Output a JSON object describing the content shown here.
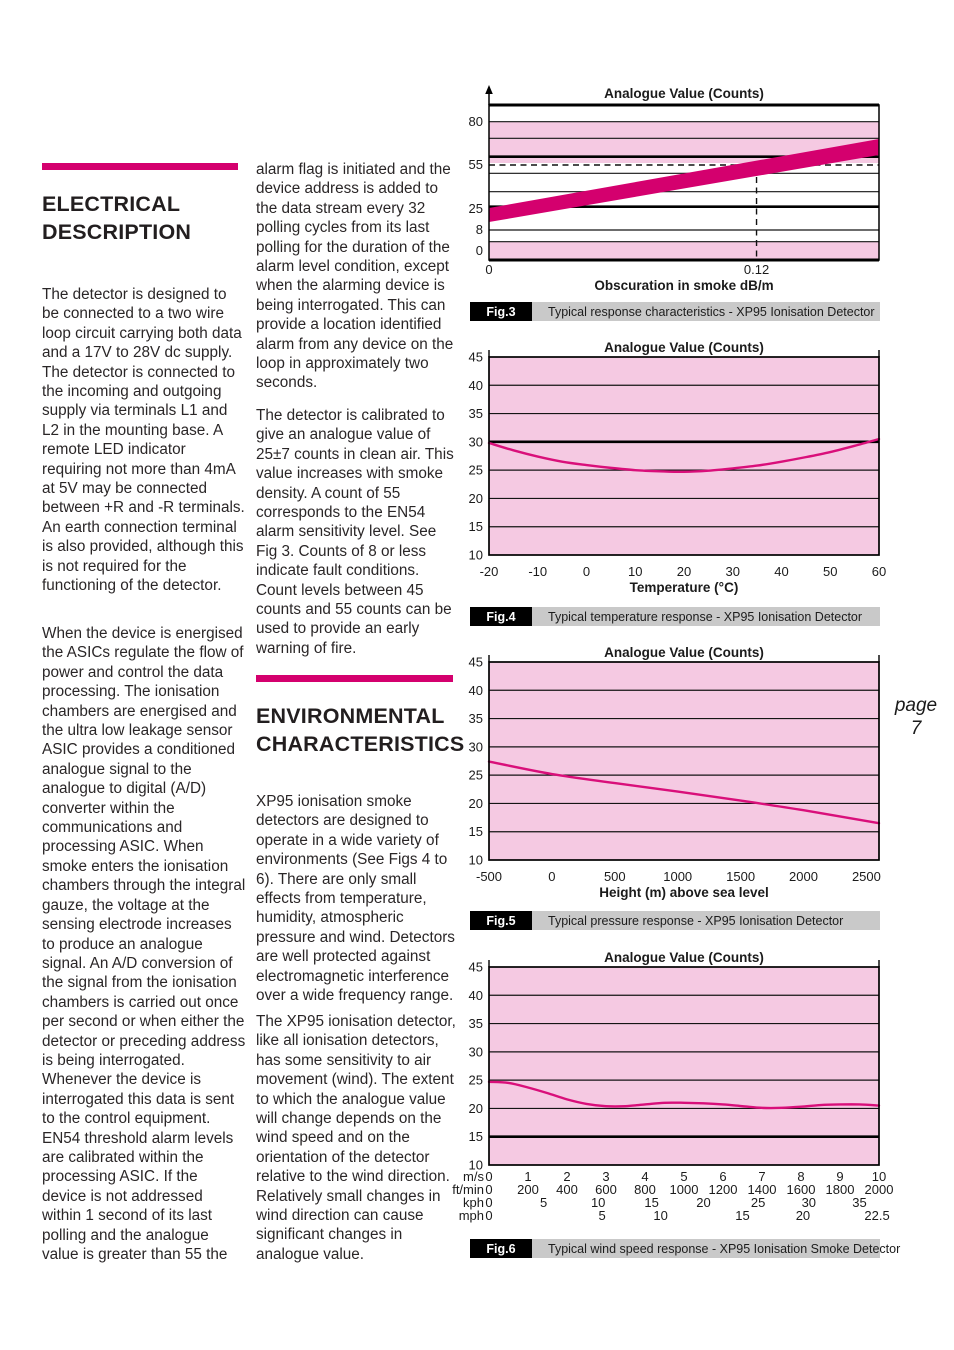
{
  "page_number": {
    "word": "page",
    "number": "7"
  },
  "left_column": {
    "heading": "ELECTRICAL\nDESCRIPTION",
    "para1": "The detector is designed to be connected to a two wire loop circuit carrying both data and a 17V to 28V dc supply.  The detector is connected to the incoming and outgoing supply via terminals L1 and L2 in the mounting base.  A remote LED indicator requiring not more than 4mA at 5V may be connected between +R and -R terminals.  An earth connection terminal is also provided, although this is not required for the functioning of the detector.",
    "para2": "When the device is energised the ASICs regulate the flow of power and control the data processing.  The ionisation chambers are energised and the ultra low leakage sensor ASIC provides a conditioned analogue signal to the analogue to digital (A/D) converter within the communications and processing ASIC.  When smoke enters the ionisation chambers through the integral gauze, the voltage at the sensing electrode increases to produce an analogue signal.  An A/D conversion of the signal from the ionisation chambers is carried out once per second or when either the detector or preceding address is being interrogated.  Whenever the device is interrogated this data is sent to the control equipment.  EN54 threshold alarm levels are calibrated within the processing ASIC.  If the device is not addressed within 1 second of its last polling and the analogue value is greater than 55 the"
  },
  "middle_column": {
    "para1": "alarm flag is initiated and the device address is added to the data stream every 32 polling cycles from its last polling for the duration of the alarm level condition, except when the alarming device is being interrogated.  This can provide a location identified alarm from any device on the loop in approximately two seconds.",
    "para2": "The detector is calibrated to give an analogue value of 25±7 counts in clean air.  This value increases with smoke density.  A count of 55 corresponds to the EN54 alarm sensitivity level.  See Fig 3. Counts of 8 or less indicate fault conditions.  Count levels between 45 counts and 55 counts can be used to provide an early warning of fire.",
    "heading": "ENVIRONMENTAL\nCHARACTERISTICS",
    "para3": "XP95 ionisation smoke detectors are designed to operate in a wide variety of environments (See Figs 4 to 6).  There are only small effects from temperature, humidity, atmospheric pressure and wind.  Detectors are well protected against electromagnetic interference over a wide frequency range.",
    "para4": "The XP95 ionisation detector, like all ionisation detectors, has some sensitivity to air movement (wind).  The extent to which the analogue value will change depends on the wind speed and on the orientation of the detector relative to the wind direction.  Relatively small changes in wind direction can cause significant changes in analogue value."
  },
  "colors": {
    "accent_magenta": "#d4006e",
    "curve_magenta": "#d90f7a",
    "pink_fill": "#f5c9e2",
    "caption_bar": "#c9c9c9",
    "grid_line": "#141414"
  },
  "chart_data": [
    {
      "figure": "Fig.3",
      "caption": "Typical response characteristics - XP95 Ionisation Detector",
      "type": "area",
      "title": "Analogue Value (Counts)",
      "xlabel": "Obscuration in smoke dB/m",
      "x_ticks": [
        {
          "label": "0",
          "frac": 0
        },
        {
          "label": "0.12",
          "frac": 0.686
        }
      ],
      "y_tick_labels": [
        "80",
        "55",
        "25",
        "8",
        "0"
      ],
      "clean_air_counts": 25,
      "alarm_threshold_counts": 55,
      "fault_counts": 8,
      "early_warning_band_counts": [
        45,
        55
      ],
      "reference_obscuration_dbm": 0.12,
      "band": {
        "x_dbm": [
          0,
          0.175
        ],
        "counts_low": [
          23,
          60
        ],
        "counts_high": [
          27,
          68
        ]
      }
    },
    {
      "figure": "Fig.4",
      "caption": "Typical temperature response - XP95 Ionisation Detector",
      "type": "line",
      "title": "Analogue Value (Counts)",
      "xlabel": "Temperature (°C)",
      "xlim": [
        -20,
        60
      ],
      "ylim": [
        10,
        45
      ],
      "x_ticks": [
        -20,
        -10,
        0,
        10,
        20,
        30,
        40,
        50,
        60
      ],
      "y_ticks": [
        45,
        40,
        35,
        30,
        25,
        20,
        15,
        10
      ],
      "reference_line_y": 30,
      "series": [
        {
          "name": "analogue value",
          "x": [
            -20,
            -15,
            -10,
            -5,
            0,
            5,
            10,
            15,
            20,
            25,
            30,
            35,
            40,
            45,
            50,
            55,
            60
          ],
          "y": [
            29.8,
            28.5,
            27.4,
            26.5,
            25.9,
            25.4,
            25.0,
            24.8,
            24.7,
            24.9,
            25.3,
            25.8,
            26.5,
            27.3,
            28.2,
            29.3,
            30.5
          ]
        }
      ]
    },
    {
      "figure": "Fig.5",
      "caption": "Typical pressure response - XP95 Ionisation Detector",
      "type": "line",
      "title": "Analogue Value (Counts)",
      "xlabel": "Height (m) above sea level",
      "xlim": [
        -500,
        2600
      ],
      "ylim": [
        10,
        45
      ],
      "x_ticks": [
        -500,
        0,
        500,
        1000,
        1500,
        2000,
        2500
      ],
      "y_ticks": [
        45,
        40,
        35,
        30,
        25,
        20,
        15,
        10
      ],
      "series": [
        {
          "name": "analogue value",
          "x": [
            -500,
            0,
            500,
            1000,
            1500,
            2000,
            2600
          ],
          "y": [
            27.4,
            25.2,
            23.6,
            22.1,
            20.5,
            18.8,
            16.5
          ]
        }
      ]
    },
    {
      "figure": "Fig.6",
      "caption": "Typical wind speed response - XP95 Ionisation Smoke Detector",
      "type": "line",
      "title": "Analogue Value (Counts)",
      "xlim": [
        0,
        10
      ],
      "ylim": [
        10,
        45
      ],
      "y_ticks": [
        45,
        40,
        35,
        30,
        25,
        20,
        15,
        10
      ],
      "reference_line_y": 15,
      "axis_rows": [
        {
          "unit": "m/s",
          "ticks": [
            {
              "x": 0,
              "label": "0"
            },
            {
              "x": 1,
              "label": "1"
            },
            {
              "x": 2,
              "label": "2"
            },
            {
              "x": 3,
              "label": "3"
            },
            {
              "x": 4,
              "label": "4"
            },
            {
              "x": 5,
              "label": "5"
            },
            {
              "x": 6,
              "label": "6"
            },
            {
              "x": 7,
              "label": "7"
            },
            {
              "x": 8,
              "label": "8"
            },
            {
              "x": 9,
              "label": "9"
            },
            {
              "x": 10,
              "label": "10"
            }
          ]
        },
        {
          "unit": "ft/min",
          "ticks": [
            {
              "x": 0,
              "label": "0"
            },
            {
              "x": 1,
              "label": "200"
            },
            {
              "x": 2,
              "label": "400"
            },
            {
              "x": 3,
              "label": "600"
            },
            {
              "x": 4,
              "label": "800"
            },
            {
              "x": 5,
              "label": "1000"
            },
            {
              "x": 6,
              "label": "1200"
            },
            {
              "x": 7,
              "label": "1400"
            },
            {
              "x": 8,
              "label": "1600"
            },
            {
              "x": 9,
              "label": "1800"
            },
            {
              "x": 10,
              "label": "2000"
            }
          ]
        },
        {
          "unit": "kph",
          "ticks": [
            {
              "x": 0,
              "label": "0"
            },
            {
              "x": 1.4,
              "label": "5"
            },
            {
              "x": 2.8,
              "label": "10"
            },
            {
              "x": 4.17,
              "label": "15"
            },
            {
              "x": 5.5,
              "label": "20"
            },
            {
              "x": 6.9,
              "label": "25"
            },
            {
              "x": 8.2,
              "label": "30"
            },
            {
              "x": 9.5,
              "label": "35"
            }
          ]
        },
        {
          "unit": "mph",
          "ticks": [
            {
              "x": 0,
              "label": "0"
            },
            {
              "x": 2.9,
              "label": "5"
            },
            {
              "x": 4.4,
              "label": "10"
            },
            {
              "x": 6.5,
              "label": "15"
            },
            {
              "x": 8.05,
              "label": "20"
            },
            {
              "x": 9.95,
              "label": "22.5"
            }
          ]
        }
      ],
      "series": [
        {
          "name": "analogue value",
          "x": [
            0,
            0.5,
            1,
            1.5,
            2,
            2.5,
            3,
            3.5,
            4,
            4.5,
            5,
            5.5,
            6,
            6.5,
            7,
            7.5,
            8,
            8.5,
            9,
            9.5,
            10
          ],
          "y": [
            24.7,
            24.5,
            23.7,
            22.7,
            21.6,
            20.8,
            20.4,
            20.4,
            20.7,
            21.0,
            21.0,
            20.9,
            20.7,
            20.4,
            20.1,
            20.1,
            20.3,
            20.6,
            20.7,
            20.7,
            20.5
          ]
        }
      ]
    }
  ]
}
